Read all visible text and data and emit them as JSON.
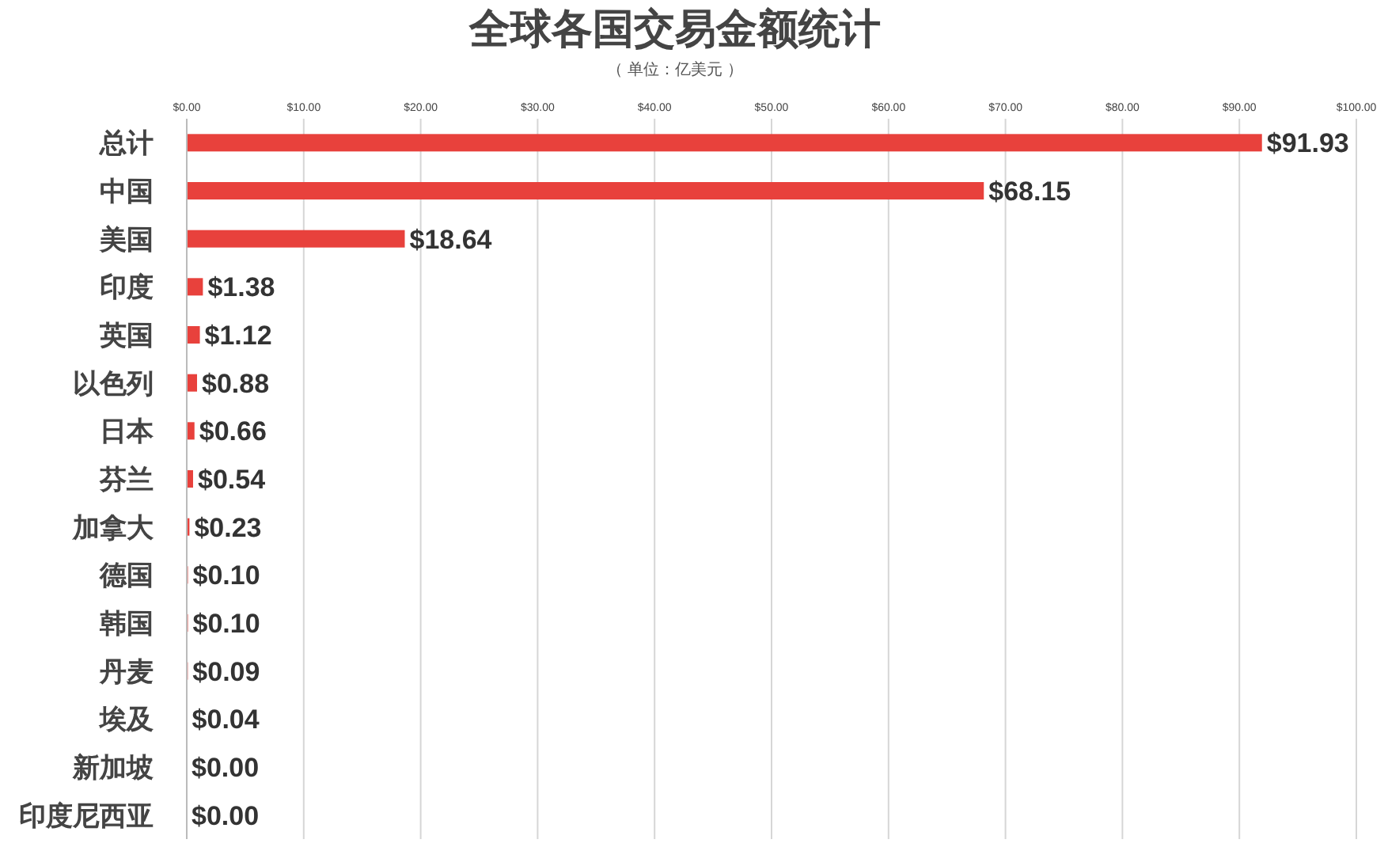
{
  "chart_data": {
    "type": "bar",
    "orientation": "horizontal",
    "title": "全球各国交易金额统计",
    "subtitle": "（ 单位：亿美元 ）",
    "categories": [
      "总计",
      "中国",
      "美国",
      "印度",
      "英国",
      "以色列",
      "日本",
      "芬兰",
      "加拿大",
      "德国",
      "韩国",
      "丹麦",
      "埃及",
      "新加坡",
      "印度尼西亚"
    ],
    "values": [
      91.93,
      68.15,
      18.64,
      1.38,
      1.12,
      0.88,
      0.66,
      0.54,
      0.23,
      0.1,
      0.1,
      0.09,
      0.04,
      0.0,
      0.0
    ],
    "color": "#e8413c",
    "value_labels": [
      "$91.93",
      "$68.15",
      "$18.64",
      "$1.38",
      "$1.12",
      "$0.88",
      "$0.66",
      "$0.54",
      "$0.23",
      "$0.10",
      "$0.10",
      "$0.09",
      "$0.04",
      "$0.00",
      "$0.00"
    ],
    "xlim": [
      0,
      100
    ],
    "xticks": [
      {
        "value": 0,
        "label": "$0.00"
      },
      {
        "value": 10,
        "label": "$10.00"
      },
      {
        "value": 20,
        "label": "$20.00"
      },
      {
        "value": 30,
        "label": "$30.00"
      },
      {
        "value": 40,
        "label": "$40.00"
      },
      {
        "value": 50,
        "label": "$50.00"
      },
      {
        "value": 60,
        "label": "$60.00"
      },
      {
        "value": 70,
        "label": "$70.00"
      },
      {
        "value": 80,
        "label": "$80.00"
      },
      {
        "value": 90,
        "label": "$90.00"
      },
      {
        "value": 100,
        "label": "$100.00"
      }
    ],
    "grid": "x"
  }
}
